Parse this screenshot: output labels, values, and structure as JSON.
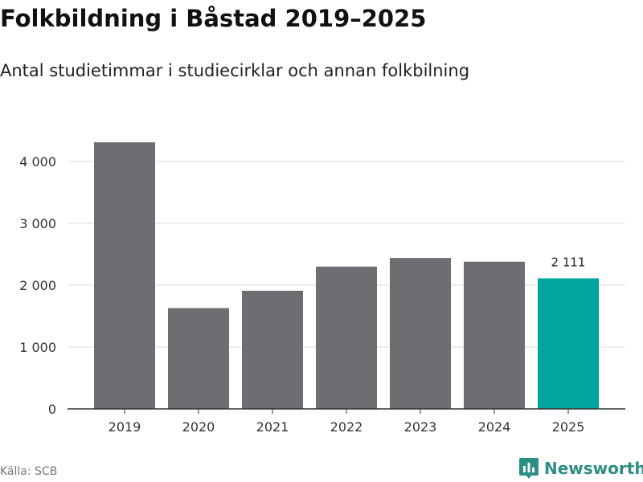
{
  "header": {
    "title": "Folkbildning i Båstad 2019–2025",
    "subtitle": "Antal studietimmar i studiecirklar och annan folkbilning"
  },
  "footer": {
    "source": "Källa: SCB",
    "brand": "Newsworthy"
  },
  "colors": {
    "bar": "#6e6d72",
    "highlight": "#00a69c",
    "grid": "#dcdcdc",
    "axis": "#333333",
    "brand": "#2b8f86"
  },
  "icons": {
    "brand_logo": "newsworthy-logo-icon"
  },
  "chart_data": {
    "type": "bar",
    "title": "Folkbildning i Båstad 2019–2025",
    "subtitle": "Antal studietimmar i studiecirklar och annan folkbilning",
    "categories": [
      "2019",
      "2020",
      "2021",
      "2022",
      "2023",
      "2024",
      "2025"
    ],
    "values": [
      4310,
      1630,
      1910,
      2300,
      2440,
      2380,
      2111
    ],
    "highlight_index": 6,
    "data_labels": [
      {
        "index": 6,
        "text": "2 111"
      }
    ],
    "ylim": [
      0,
      4000
    ],
    "yticks": [
      0,
      1000,
      2000,
      3000,
      4000
    ],
    "ytick_labels": [
      "0",
      "1 000",
      "2 000",
      "3 000",
      "4 000"
    ],
    "grid": true,
    "legend": "none",
    "xlabel": "",
    "ylabel": ""
  }
}
